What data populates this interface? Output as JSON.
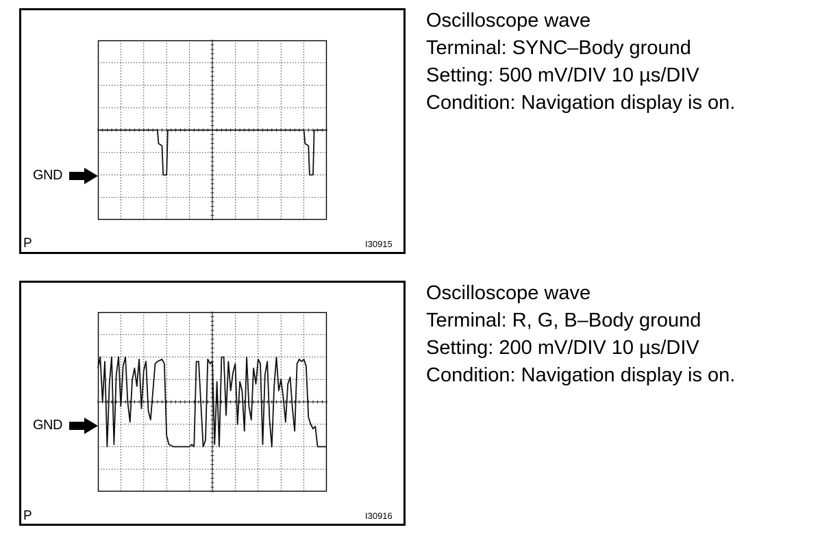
{
  "panels": [
    {
      "info": {
        "title": "Oscilloscope wave",
        "terminal": "Terminal: SYNC–Body ground",
        "setting": "Setting: 500 mV/DIV 10 µs/DIV",
        "condition": "Condition: Navigation display is on."
      },
      "gnd_label": "GND",
      "corner_label": "P",
      "figure_code": "I30915",
      "arrow_icon": "right-arrow-icon",
      "chart_data": {
        "type": "line",
        "title": "",
        "xlabel": "",
        "ylabel": "",
        "grid": true,
        "divisions": {
          "x": 10,
          "y": 8
        },
        "xlim": [
          0,
          10
        ],
        "ylim": [
          -4,
          4
        ],
        "units": {
          "x": "DIV",
          "y": "DIV"
        },
        "gnd_level": -2,
        "series": [
          {
            "x": [
              0,
              2.6,
              2.65,
              2.8,
              2.85,
              3.0,
              3.05,
              9.0,
              9.05,
              9.2,
              9.25,
              9.4,
              9.45,
              10
            ],
            "y": [
              0.0,
              0.0,
              -0.6,
              -0.7,
              -2.0,
              -2.0,
              0.0,
              0.0,
              -0.6,
              -0.7,
              -2.0,
              -2.0,
              0.0,
              0.0
            ]
          }
        ]
      }
    },
    {
      "info": {
        "title": "Oscilloscope wave",
        "terminal": "Terminal: R, G, B–Body ground",
        "setting": "Setting: 200 mV/DIV 10 µs/DIV",
        "condition": "Condition: Navigation display is on."
      },
      "gnd_label": "GND",
      "corner_label": "P",
      "figure_code": "I30916",
      "arrow_icon": "right-arrow-icon",
      "chart_data": {
        "type": "line",
        "title": "",
        "xlabel": "",
        "ylabel": "",
        "grid": true,
        "divisions": {
          "x": 10,
          "y": 8
        },
        "xlim": [
          0,
          10
        ],
        "ylim": [
          -4,
          4
        ],
        "units": {
          "x": "DIV",
          "y": "DIV"
        },
        "gnd_level": -1,
        "series": [
          {
            "x": [
              0,
              0.1,
              0.2,
              0.3,
              0.4,
              0.5,
              0.6,
              0.7,
              0.8,
              0.9,
              1.0,
              1.1,
              1.2,
              1.3,
              1.4,
              1.5,
              1.6,
              1.7,
              1.8,
              1.9,
              2.0,
              2.1,
              2.2,
              2.3,
              2.5,
              2.6,
              2.8,
              2.9,
              3.0,
              3.1,
              3.3,
              3.4,
              4.0,
              4.1,
              4.2,
              4.3,
              4.4,
              4.6,
              4.7,
              4.8,
              4.9,
              5.0,
              5.1,
              5.2,
              5.3,
              5.4,
              5.5,
              5.6,
              5.7,
              5.8,
              5.9,
              6.0,
              6.1,
              6.2,
              6.3,
              6.4,
              6.5,
              6.6,
              6.7,
              6.8,
              6.9,
              7.0,
              7.1,
              7.2,
              7.3,
              7.4,
              7.5,
              7.6,
              7.7,
              7.8,
              7.9,
              8.0,
              8.1,
              8.2,
              8.3,
              8.4,
              8.5,
              8.6,
              8.7,
              8.8,
              8.9,
              9.0,
              9.1,
              9.2,
              9.3,
              9.4,
              9.5,
              9.6,
              9.7,
              9.8,
              9.9,
              10
            ],
            "y": [
              1.5,
              2.0,
              0.0,
              1.8,
              -2.0,
              0.8,
              2.0,
              -1.9,
              1.2,
              2.0,
              -0.2,
              1.6,
              2.0,
              0.0,
              -0.9,
              1.0,
              1.5,
              0.7,
              1.9,
              -0.3,
              1.4,
              1.8,
              -0.4,
              -0.8,
              1.7,
              1.8,
              1.9,
              1.7,
              -1.5,
              -1.9,
              -2.0,
              -2.0,
              -2.0,
              -1.9,
              -2.0,
              1.8,
              1.8,
              -2.0,
              -1.7,
              1.9,
              1.7,
              1.8,
              -1.9,
              0.9,
              -2.0,
              2.0,
              2.0,
              -0.6,
              1.8,
              0.5,
              1.3,
              1.7,
              -1.0,
              0.9,
              0.5,
              -1.3,
              2.0,
              -0.2,
              -0.8,
              1.5,
              0.8,
              1.9,
              1.7,
              -1.9,
              1.2,
              1.8,
              -0.8,
              -2.0,
              0.7,
              2.0,
              0.5,
              1.0,
              0.2,
              -0.9,
              0.8,
              1.1,
              -0.3,
              -1.3,
              1.7,
              1.9,
              1.8,
              1.9,
              1.6,
              -0.7,
              -1.0,
              -1.2,
              -1.1,
              -2.0,
              -2.0,
              -2.0,
              -2.0,
              -2.0
            ]
          }
        ]
      }
    }
  ]
}
